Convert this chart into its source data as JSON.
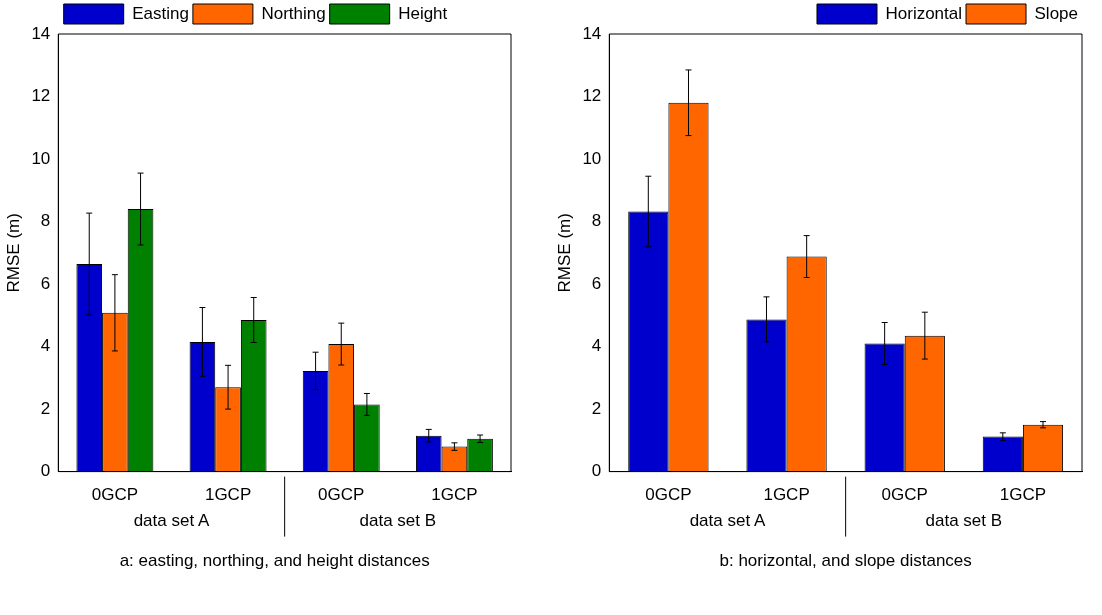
{
  "chart_data": [
    {
      "type": "bar",
      "categories": [
        "0GCP",
        "1GCP",
        "0GCP",
        "1GCP"
      ],
      "ylabel": "RMSE (m)",
      "ylim": [
        0,
        14
      ],
      "yticks": [
        0,
        2,
        4,
        6,
        8,
        10,
        12,
        14
      ],
      "grid": false,
      "legend": "top",
      "series": [
        {
          "name": "Easting",
          "color": "#0000cc",
          "values": [
            6.64,
            4.15,
            3.22,
            1.15
          ],
          "errors": [
            1.63,
            1.1,
            0.6,
            0.2
          ]
        },
        {
          "name": "Northing",
          "color": "#ff6600",
          "values": [
            5.08,
            2.7,
            4.08,
            0.8
          ],
          "errors": [
            1.22,
            0.7,
            0.67,
            0.12
          ]
        },
        {
          "name": "Height",
          "color": "#008000",
          "values": [
            8.4,
            4.85,
            2.15,
            1.05
          ],
          "errors": [
            1.15,
            0.72,
            0.35,
            0.12
          ]
        }
      ],
      "annotations": [
        "data set A",
        "data set B",
        "a: easting, northing, and height distances"
      ]
    },
    {
      "type": "bar",
      "categories": [
        "0GCP",
        "1GCP",
        "0GCP",
        "1GCP"
      ],
      "ylabel": "RMSE (m)",
      "ylim": [
        0,
        14
      ],
      "yticks": [
        0,
        2,
        4,
        6,
        8,
        10,
        12,
        14
      ],
      "grid": false,
      "legend": "top right",
      "series": [
        {
          "name": "Horizontal",
          "color": "#0000cc",
          "values": [
            8.32,
            4.87,
            4.1,
            1.12
          ],
          "errors": [
            1.13,
            0.72,
            0.67,
            0.12
          ]
        },
        {
          "name": "Slope",
          "color": "#ff6600",
          "values": [
            11.8,
            6.88,
            4.35,
            1.5
          ],
          "errors": [
            1.05,
            0.67,
            0.75,
            0.1
          ]
        }
      ],
      "annotations": [
        "data set A",
        "data set B",
        "b: horizontal, and slope distances"
      ]
    }
  ]
}
